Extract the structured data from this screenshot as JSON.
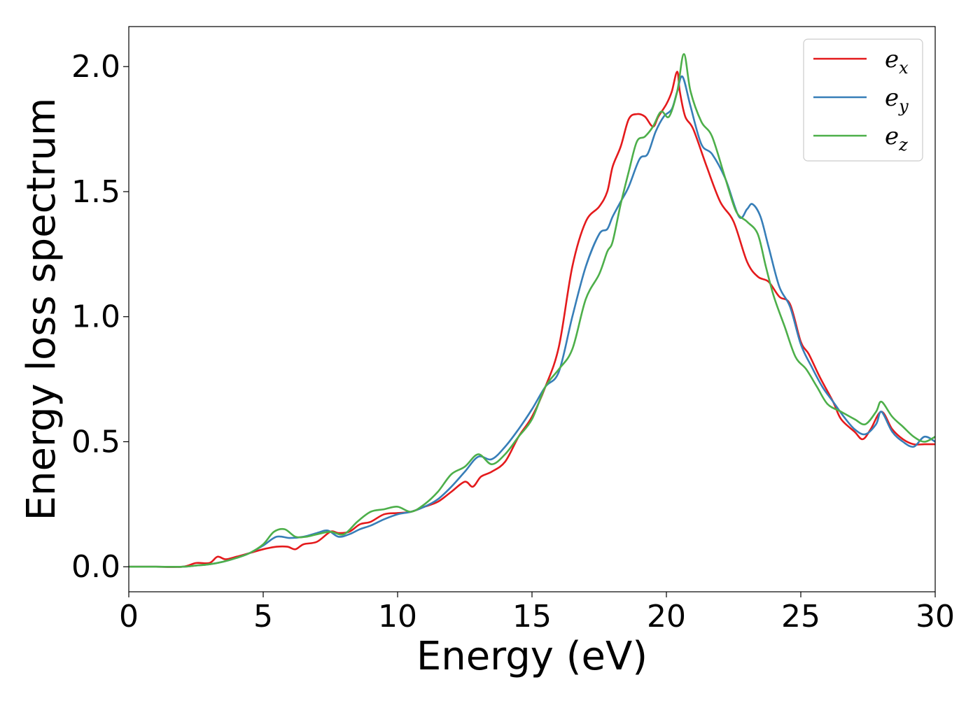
{
  "chart_data": {
    "type": "line",
    "title": "",
    "xlabel": "Energy (eV)",
    "ylabel": "Energy loss spectrum",
    "xlim": [
      0,
      30
    ],
    "ylim": [
      -0.1,
      2.16
    ],
    "xticks": [
      0,
      5,
      10,
      15,
      20,
      25,
      30
    ],
    "xtick_labels": [
      "0",
      "5",
      "10",
      "15",
      "20",
      "25",
      "30"
    ],
    "yticks": [
      0.0,
      0.5,
      1.0,
      1.5,
      2.0
    ],
    "ytick_labels": [
      "0.0",
      "0.5",
      "1.0",
      "1.5",
      "2.0"
    ],
    "grid": false,
    "legend_position": "top-right",
    "series": [
      {
        "name": "e_x",
        "label_main": "e",
        "label_sub": "x",
        "color": "#e41a1c",
        "x": [
          0,
          1,
          2,
          2.5,
          3,
          3.3,
          3.6,
          4,
          4.5,
          5,
          5.5,
          5.9,
          6.2,
          6.5,
          7,
          7.5,
          7.8,
          8.2,
          8.6,
          9,
          9.5,
          10,
          10.5,
          11,
          11.5,
          12,
          12.5,
          12.8,
          13.1,
          13.5,
          14,
          14.5,
          15,
          15.5,
          16,
          16.5,
          17,
          17.5,
          17.8,
          18,
          18.3,
          18.6,
          18.9,
          19.2,
          19.5,
          19.7,
          20,
          20.2,
          20.4,
          20.5,
          20.7,
          21,
          21.5,
          22,
          22.5,
          23,
          23.4,
          23.8,
          24.2,
          24.6,
          25,
          25.3,
          25.7,
          26.2,
          26.5,
          27,
          27.3,
          27.6,
          28,
          28.4,
          28.8,
          29.2,
          29.6,
          30
        ],
        "y": [
          0,
          0,
          0,
          0.015,
          0.015,
          0.04,
          0.03,
          0.04,
          0.055,
          0.07,
          0.08,
          0.08,
          0.07,
          0.09,
          0.1,
          0.14,
          0.135,
          0.14,
          0.17,
          0.18,
          0.21,
          0.215,
          0.22,
          0.24,
          0.26,
          0.3,
          0.34,
          0.32,
          0.36,
          0.38,
          0.42,
          0.52,
          0.6,
          0.72,
          0.88,
          1.2,
          1.38,
          1.44,
          1.5,
          1.6,
          1.68,
          1.79,
          1.81,
          1.8,
          1.76,
          1.8,
          1.85,
          1.9,
          1.98,
          1.9,
          1.8,
          1.75,
          1.6,
          1.46,
          1.38,
          1.22,
          1.16,
          1.14,
          1.08,
          1.05,
          0.9,
          0.85,
          0.76,
          0.66,
          0.59,
          0.54,
          0.51,
          0.55,
          0.62,
          0.55,
          0.51,
          0.49,
          0.49,
          0.49
        ]
      },
      {
        "name": "e_y",
        "label_main": "e",
        "label_sub": "y",
        "color": "#377eb8",
        "x": [
          0,
          1,
          2,
          2.5,
          3,
          3.5,
          4,
          4.5,
          5,
          5.5,
          6,
          6.5,
          7,
          7.4,
          7.8,
          8.2,
          8.6,
          9,
          9.5,
          10,
          10.5,
          11,
          11.5,
          12,
          12.5,
          13,
          13.5,
          14,
          14.5,
          15,
          15.5,
          16,
          16.5,
          17,
          17.5,
          17.8,
          18,
          18.3,
          18.6,
          19,
          19.3,
          19.6,
          19.9,
          20.2,
          20.4,
          20.6,
          20.9,
          21.3,
          21.7,
          22.2,
          22.7,
          23,
          23.2,
          23.5,
          23.8,
          24.2,
          24.6,
          25,
          25.4,
          25.8,
          26.2,
          26.6,
          27,
          27.4,
          27.8,
          28,
          28.4,
          28.8,
          29.2,
          29.6,
          30
        ],
        "y": [
          0,
          0,
          0,
          0.005,
          0.01,
          0.02,
          0.035,
          0.055,
          0.085,
          0.12,
          0.115,
          0.12,
          0.135,
          0.145,
          0.12,
          0.13,
          0.15,
          0.165,
          0.19,
          0.21,
          0.22,
          0.24,
          0.27,
          0.32,
          0.38,
          0.44,
          0.43,
          0.48,
          0.55,
          0.63,
          0.72,
          0.78,
          1.0,
          1.2,
          1.33,
          1.35,
          1.4,
          1.46,
          1.52,
          1.63,
          1.65,
          1.74,
          1.8,
          1.83,
          1.9,
          1.96,
          1.84,
          1.69,
          1.65,
          1.55,
          1.4,
          1.43,
          1.45,
          1.4,
          1.28,
          1.12,
          1.04,
          0.89,
          0.8,
          0.72,
          0.66,
          0.6,
          0.55,
          0.53,
          0.57,
          0.62,
          0.54,
          0.5,
          0.48,
          0.52,
          0.5
        ]
      },
      {
        "name": "e_z",
        "label_main": "e",
        "label_sub": "z",
        "color": "#4daf4a",
        "x": [
          0,
          1,
          2,
          2.5,
          3,
          3.5,
          4,
          4.5,
          5,
          5.4,
          5.8,
          6.2,
          6.6,
          7,
          7.5,
          8,
          8.5,
          9,
          9.5,
          10,
          10.5,
          11,
          11.5,
          12,
          12.5,
          13,
          13.5,
          14,
          14.5,
          15,
          15.5,
          16,
          16.5,
          17,
          17.5,
          17.8,
          18,
          18.3,
          18.6,
          18.9,
          19.2,
          19.5,
          19.8,
          20.1,
          20.4,
          20.65,
          20.9,
          21.3,
          21.7,
          22.2,
          22.6,
          23,
          23.4,
          23.7,
          24,
          24.4,
          24.8,
          25.2,
          25.6,
          26,
          26.5,
          27,
          27.4,
          27.8,
          28,
          28.4,
          28.8,
          29.2,
          29.6,
          30
        ],
        "y": [
          0,
          0,
          0,
          0.005,
          0.01,
          0.02,
          0.035,
          0.055,
          0.09,
          0.14,
          0.15,
          0.12,
          0.12,
          0.13,
          0.14,
          0.13,
          0.18,
          0.22,
          0.23,
          0.24,
          0.22,
          0.25,
          0.3,
          0.37,
          0.4,
          0.45,
          0.41,
          0.45,
          0.52,
          0.59,
          0.72,
          0.79,
          0.87,
          1.07,
          1.17,
          1.26,
          1.3,
          1.45,
          1.58,
          1.7,
          1.72,
          1.76,
          1.82,
          1.8,
          1.9,
          2.05,
          1.9,
          1.78,
          1.72,
          1.55,
          1.42,
          1.38,
          1.33,
          1.2,
          1.08,
          0.96,
          0.84,
          0.79,
          0.72,
          0.65,
          0.62,
          0.59,
          0.57,
          0.62,
          0.66,
          0.6,
          0.56,
          0.52,
          0.5,
          0.52
        ]
      }
    ]
  }
}
